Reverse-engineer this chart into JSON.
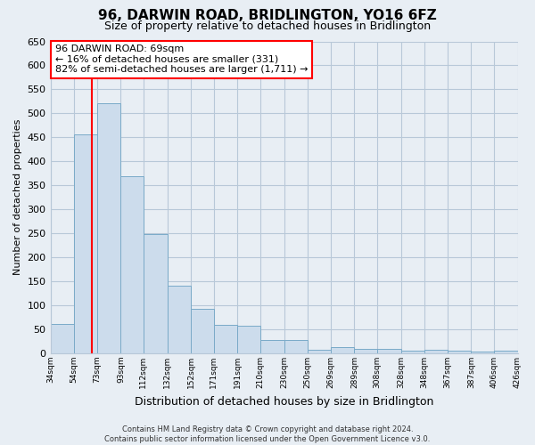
{
  "title": "96, DARWIN ROAD, BRIDLINGTON, YO16 6FZ",
  "subtitle": "Size of property relative to detached houses in Bridlington",
  "xlabel": "Distribution of detached houses by size in Bridlington",
  "ylabel": "Number of detached properties",
  "bar_left_edges": [
    34,
    54,
    73,
    93,
    112,
    132,
    152,
    171,
    191,
    210,
    230,
    250,
    269,
    289,
    308,
    328,
    348,
    367,
    387,
    406
  ],
  "bar_heights": [
    62,
    457,
    521,
    369,
    249,
    141,
    93,
    60,
    57,
    27,
    28,
    8,
    13,
    10,
    10,
    6,
    8,
    5,
    3,
    5
  ],
  "bar_widths": [
    20,
    19,
    20,
    19,
    20,
    20,
    19,
    20,
    19,
    20,
    20,
    19,
    20,
    19,
    20,
    20,
    19,
    20,
    19,
    20
  ],
  "bar_color": "#ccdcec",
  "bar_edgecolor": "#7aaac8",
  "tick_labels": [
    "34sqm",
    "54sqm",
    "73sqm",
    "93sqm",
    "112sqm",
    "132sqm",
    "152sqm",
    "171sqm",
    "191sqm",
    "210sqm",
    "230sqm",
    "250sqm",
    "269sqm",
    "289sqm",
    "308sqm",
    "328sqm",
    "348sqm",
    "367sqm",
    "387sqm",
    "406sqm",
    "426sqm"
  ],
  "tick_positions": [
    34,
    54,
    73,
    93,
    112,
    132,
    152,
    171,
    191,
    210,
    230,
    250,
    269,
    289,
    308,
    328,
    348,
    367,
    387,
    406,
    426
  ],
  "ylim": [
    0,
    650
  ],
  "xlim": [
    34,
    426
  ],
  "yticks": [
    0,
    50,
    100,
    150,
    200,
    250,
    300,
    350,
    400,
    450,
    500,
    550,
    600,
    650
  ],
  "property_line_x": 69,
  "annotation_title": "96 DARWIN ROAD: 69sqm",
  "annotation_line1": "← 16% of detached houses are smaller (331)",
  "annotation_line2": "82% of semi-detached houses are larger (1,711) →",
  "footer_line1": "Contains HM Land Registry data © Crown copyright and database right 2024.",
  "footer_line2": "Contains public sector information licensed under the Open Government Licence v3.0.",
  "bg_color": "#e8eef4",
  "plot_bg_color": "#e8eef4",
  "grid_color": "#b8c8d8",
  "title_fontsize": 11,
  "subtitle_fontsize": 9,
  "ylabel_fontsize": 8,
  "xlabel_fontsize": 9
}
